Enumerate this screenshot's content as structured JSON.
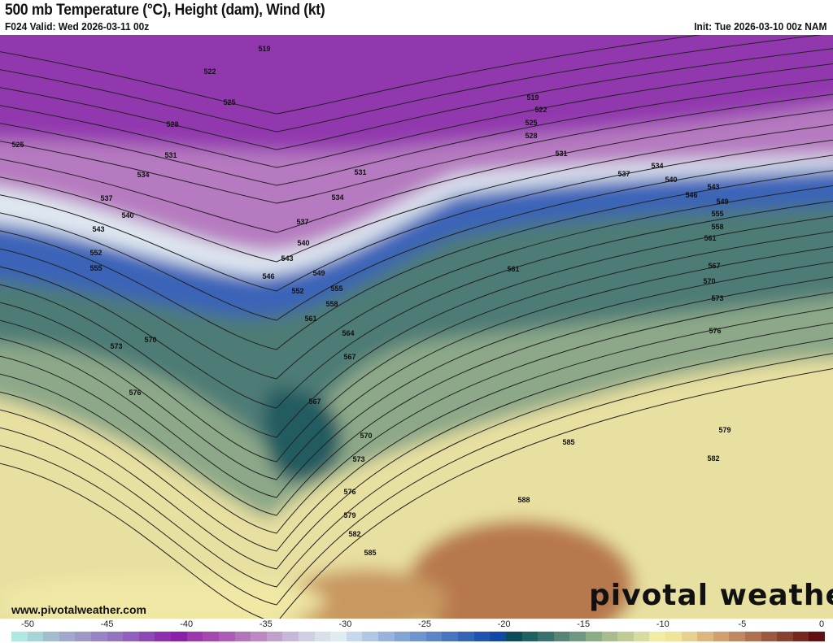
{
  "header": {
    "title": "500 mb Temperature (°C), Height (dam), Wind (kt)",
    "valid": "F024 Valid: Wed 2026-03-11 00z",
    "init": "Init: Tue 2026-03-10 00z NAM"
  },
  "map": {
    "fields": [
      "temperature",
      "height",
      "wind-barbs"
    ],
    "contour_labels": [
      "519",
      "522",
      "525",
      "528",
      "531",
      "534",
      "537",
      "540",
      "543",
      "552",
      "555",
      "573",
      "570",
      "576",
      "519",
      "522",
      "525",
      "528",
      "531",
      "531",
      "534",
      "537",
      "540",
      "543",
      "546",
      "549",
      "552",
      "555",
      "558",
      "561",
      "564",
      "567",
      "567",
      "570",
      "573",
      "576",
      "579",
      "582",
      "585",
      "588",
      "585",
      "582",
      "579",
      "576",
      "573",
      "570",
      "567",
      "561",
      "558",
      "555",
      "549",
      "546",
      "543",
      "540",
      "537",
      "534",
      "561",
      "525"
    ]
  },
  "footer": {
    "website": "www.pivotalweather.com",
    "brand": "pivotal weather"
  },
  "colorbar": {
    "ticks": [
      "-50",
      "-45",
      "-40",
      "-35",
      "-30",
      "-25",
      "-20",
      "-15",
      "-10",
      "-5",
      "0"
    ],
    "colors": [
      "#aee8e0",
      "#a8d4d8",
      "#a4bcd0",
      "#a0a8cc",
      "#9c98c8",
      "#9884c4",
      "#9474c0",
      "#9060bc",
      "#8c48b4",
      "#8c30ac",
      "#8c20a8",
      "#9c38ac",
      "#a448b0",
      "#ac5cb4",
      "#b474bc",
      "#bc88c4",
      "#c0a0cc",
      "#c8b8d8",
      "#d0d0e4",
      "#d8e0e8",
      "#e0ecf0",
      "#c8d8ec",
      "#b0c8e4",
      "#98b4dc",
      "#84a4d4",
      "#7094cc",
      "#5c84c8",
      "#4874c0",
      "#3464b8",
      "#2054b0",
      "#1048a8",
      "#0c4c58",
      "#206060",
      "#3c706c",
      "#588478",
      "#709880",
      "#8cac88",
      "#a8bc90",
      "#c0cc98",
      "#d8dca0",
      "#f0eca4",
      "#f0e498",
      "#e8d090",
      "#dcb880",
      "#d0a070",
      "#c08860",
      "#b07050",
      "#9c5840",
      "#884030",
      "#742820",
      "#641010"
    ]
  }
}
